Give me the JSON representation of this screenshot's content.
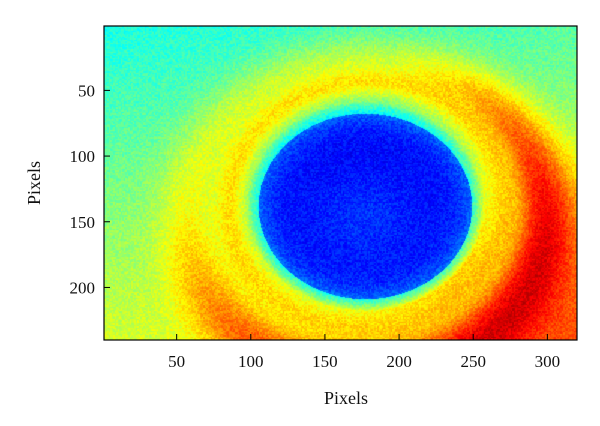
{
  "chart_data": {
    "type": "heatmap",
    "title": "",
    "xlabel": "Pixels",
    "ylabel": "Pixels",
    "xlim": [
      1,
      320
    ],
    "ylim": [
      1,
      240
    ],
    "y_inverted": true,
    "x_ticks": [
      50,
      100,
      150,
      200,
      250,
      300
    ],
    "y_ticks": [
      50,
      100,
      150,
      200
    ],
    "x_tick_labels": [
      "50",
      "100",
      "150",
      "200",
      "250",
      "300"
    ],
    "y_tick_labels": [
      "50",
      "100",
      "150",
      "200"
    ],
    "colormap": "jet",
    "grid": false,
    "legend": "none",
    "features": {
      "central_disc": {
        "center": [
          177,
          138
        ],
        "radius": 72,
        "level": 0.12
      },
      "disc_halo": {
        "center": [
          177,
          138
        ],
        "radius": 80,
        "level": 0.3
      },
      "inner_ring": {
        "center": [
          180,
          138
        ],
        "radius": 95,
        "level": 0.68
      },
      "outer_spiral_ring": {
        "center": [
          185,
          140
        ],
        "radius": 120,
        "level": 0.92
      },
      "background_level": 0.4,
      "lower_right_corner_level": 0.9
    }
  }
}
